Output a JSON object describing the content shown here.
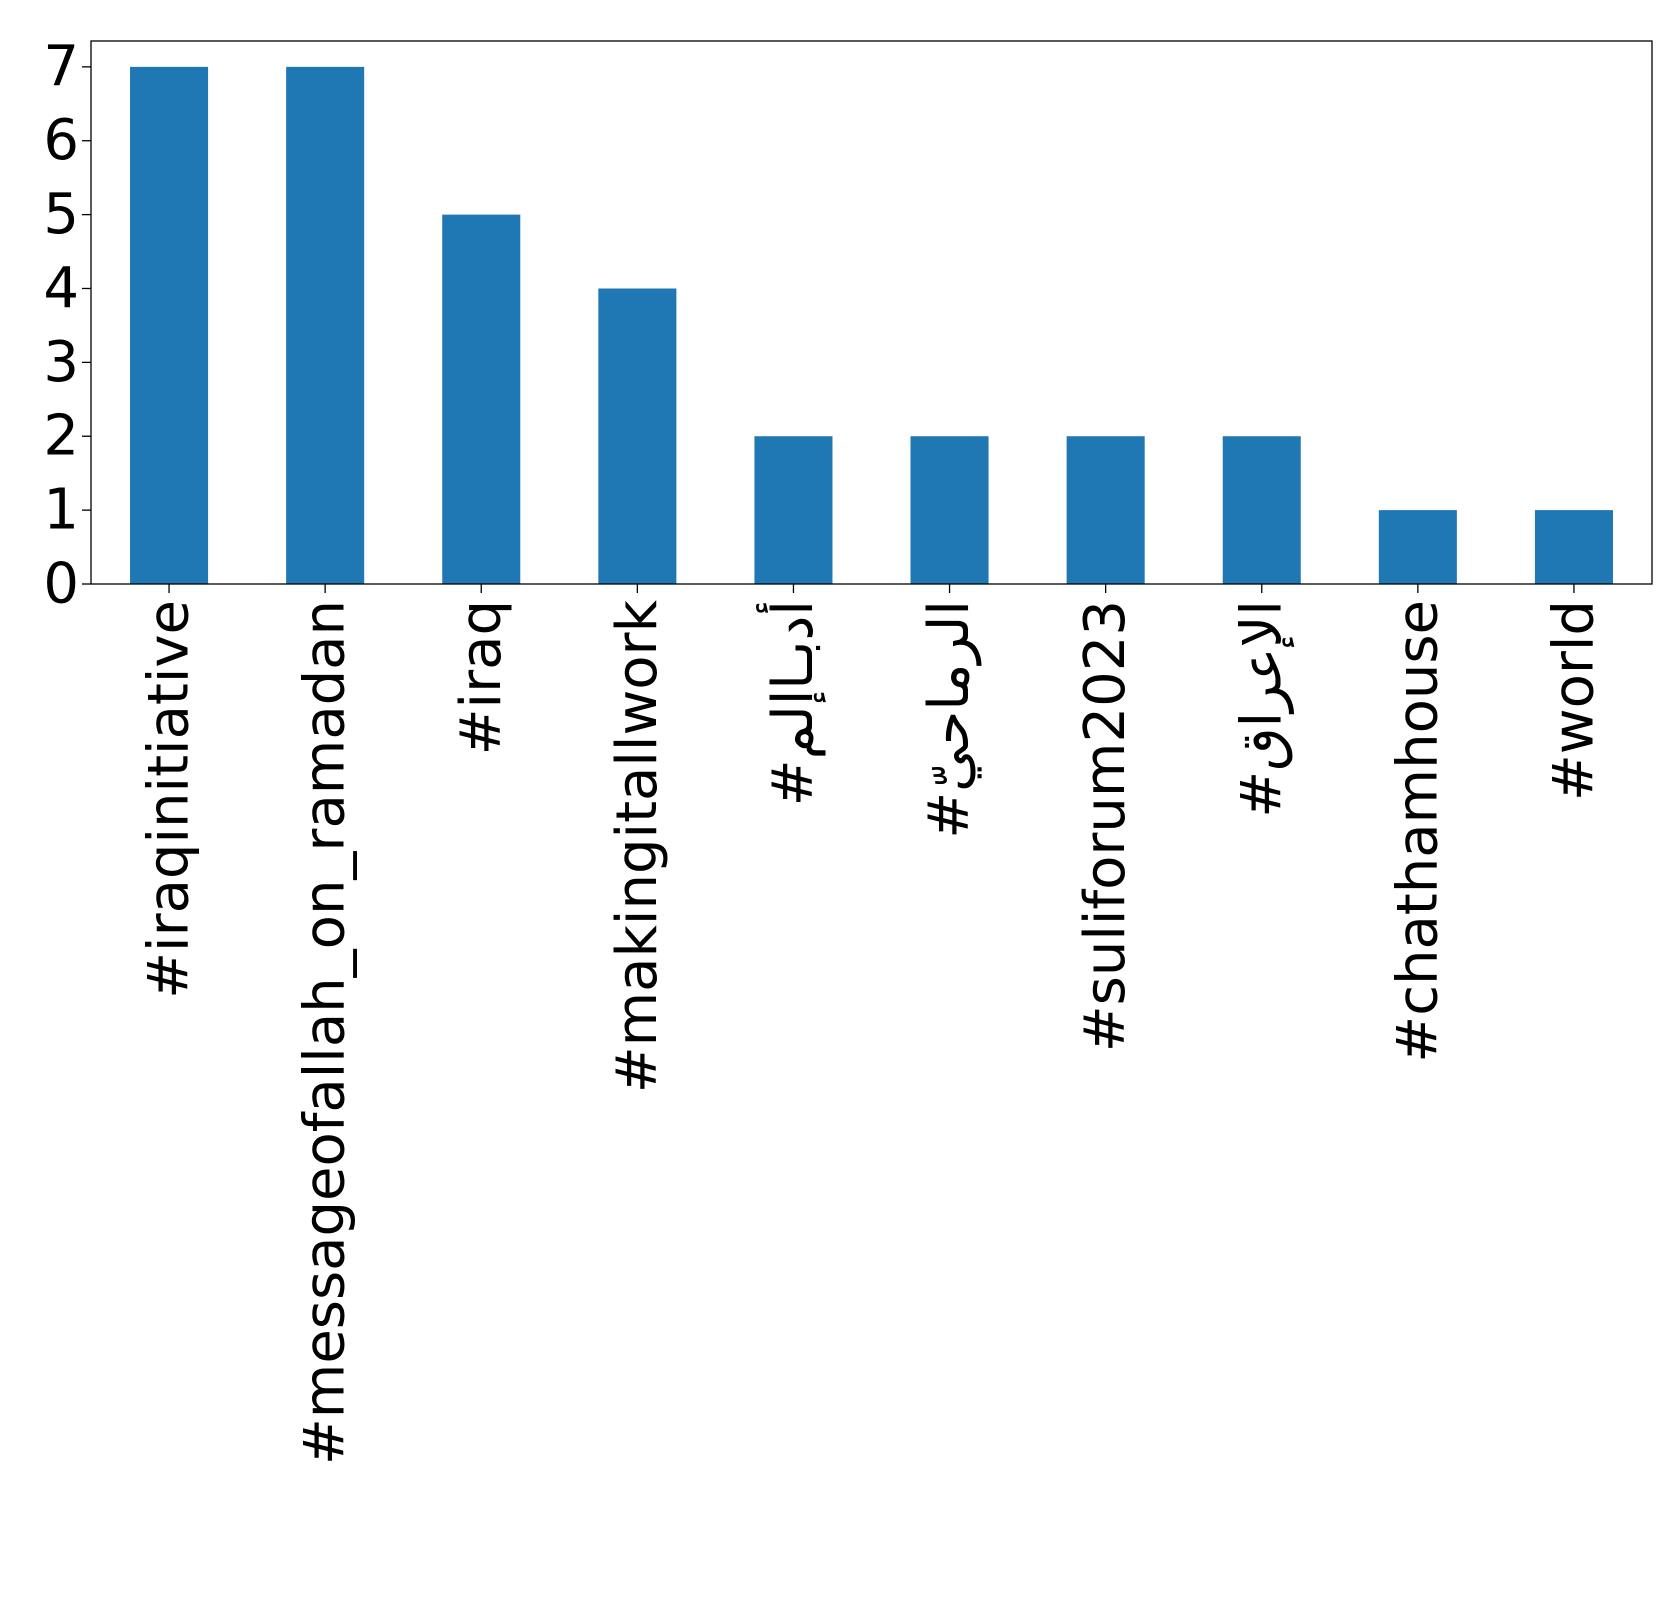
{
  "chart_data": {
    "type": "bar",
    "title": "",
    "xlabel": "",
    "ylabel": "",
    "categories": [
      "#iraqinitiative",
      "#messageofallah_on_ramadan",
      "#iraq",
      "#makingitallwork",
      "#أدبـاإلم",
      "#الرماحيّ",
      "#suliforum2023",
      "#الإعراق",
      "#chathamhouse",
      "#world"
    ],
    "values": [
      7,
      7,
      5,
      4,
      2,
      2,
      2,
      2,
      1,
      1
    ],
    "ylim": [
      0,
      7.35
    ],
    "yticks": [
      0,
      1,
      2,
      3,
      4,
      5,
      6,
      7
    ],
    "grid": false,
    "legend": "none",
    "colors": {
      "bar": "#1f77b4",
      "axis": "#000000",
      "background": "#ffffff"
    }
  }
}
